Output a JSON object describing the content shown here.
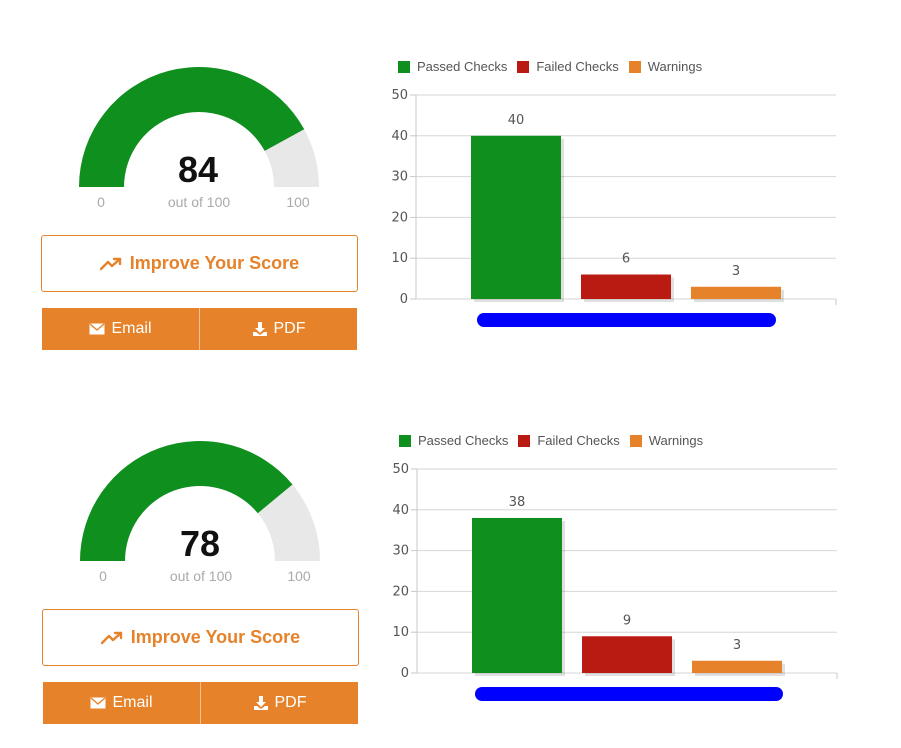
{
  "colors": {
    "passed": "#0f8f1e",
    "failed": "#b91a11",
    "warnings": "#e5822a",
    "gauge_track": "#e8e8e8",
    "accent": "#e5822a",
    "scrollbar": "#0000ff"
  },
  "panels": [
    {
      "gauge": {
        "score": "84",
        "score_fraction": 0.84,
        "min_label": "0",
        "caption": "out of 100",
        "max_label": "100"
      },
      "improve_label": "Improve Your Score",
      "email_label": "Email",
      "pdf_label": "PDF",
      "legend": [
        "Passed Checks",
        "Failed Checks",
        "Warnings"
      ]
    },
    {
      "gauge": {
        "score": "78",
        "score_fraction": 0.78,
        "min_label": "0",
        "caption": "out of 100",
        "max_label": "100"
      },
      "improve_label": "Improve Your Score",
      "email_label": "Email",
      "pdf_label": "PDF",
      "legend": [
        "Passed Checks",
        "Failed Checks",
        "Warnings"
      ]
    }
  ],
  "chart_data": [
    {
      "type": "bar",
      "categories": [
        "Passed Checks",
        "Failed Checks",
        "Warnings"
      ],
      "values": [
        40,
        6,
        3
      ],
      "value_labels": [
        "40",
        "6",
        "3"
      ],
      "ylim": [
        0,
        50
      ],
      "yticks": [
        "0",
        "10",
        "20",
        "30",
        "40",
        "50"
      ],
      "grid": true,
      "legend": "top"
    },
    {
      "type": "bar",
      "categories": [
        "Passed Checks",
        "Failed Checks",
        "Warnings"
      ],
      "values": [
        38,
        9,
        3
      ],
      "value_labels": [
        "38",
        "9",
        "3"
      ],
      "ylim": [
        0,
        50
      ],
      "yticks": [
        "0",
        "10",
        "20",
        "30",
        "40",
        "50"
      ],
      "grid": true,
      "legend": "top"
    }
  ]
}
